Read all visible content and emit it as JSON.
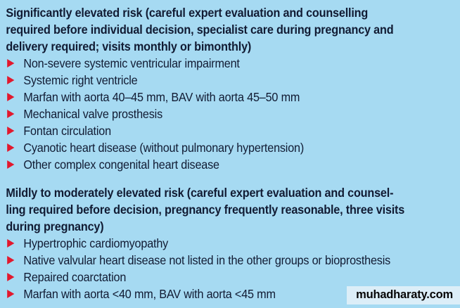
{
  "page": {
    "background_color": "#a6daf2",
    "text_color": "#111b33",
    "bullet_color": "#e2182d"
  },
  "sections": [
    {
      "heading": "Significantly elevated risk (careful expert evaluation and counselling\nrequired before individual decision, specialist care during pregnancy and\ndelivery required; visits monthly or bimonthly)",
      "items": [
        "Non-severe systemic ventricular impairment",
        "Systemic right ventricle",
        "Marfan with aorta 40–45 mm, BAV with aorta 45–50 mm",
        "Mechanical valve prosthesis",
        "Fontan circulation",
        "Cyanotic heart disease (without pulmonary hypertension)",
        "Other complex congenital heart disease"
      ]
    },
    {
      "heading": "Mildly to moderately elevated risk (careful expert evaluation and counsel-\nling required before decision, pregnancy frequently reasonable, three visits\nduring pregnancy)",
      "items": [
        "Hypertrophic cardiomyopathy",
        "Native valvular heart disease not listed in the other groups or bioprosthesis",
        "Repaired coarctation",
        "Marfan with aorta <40 mm, BAV with aorta <45 mm"
      ]
    }
  ],
  "watermark": {
    "label": "muhadharaty.com"
  }
}
